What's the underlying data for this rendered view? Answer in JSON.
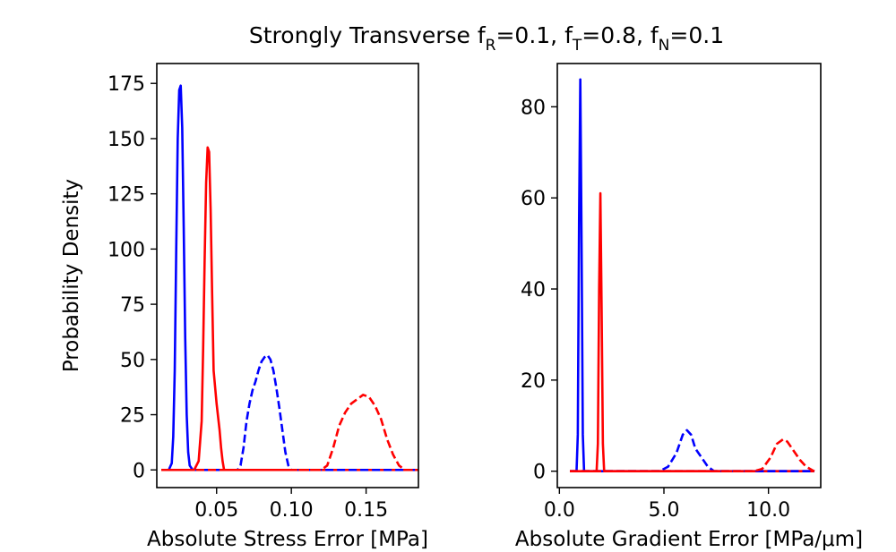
{
  "figure": {
    "title_main": "Strongly Transverse f",
    "title_parts": [
      {
        "base": "Strongly Transverse f",
        "sub": "R",
        "tail": "=0.1, f"
      },
      {
        "sub": "T",
        "tail": "=0.8, f"
      },
      {
        "sub": "N",
        "tail": "=0.1"
      }
    ]
  },
  "colors": {
    "blue": "#0000ff",
    "red": "#ff0000",
    "axis": "#000000"
  },
  "chart_data": [
    {
      "type": "line",
      "xlabel": "Absolute Stress Error [MPa]",
      "ylabel": "Probability Density",
      "xlim": [
        0.01,
        0.185
      ],
      "ylim": [
        -8,
        184
      ],
      "xticks": [
        0.05,
        0.1,
        0.15
      ],
      "xtick_labels": [
        "0.05",
        "0.10",
        "0.15"
      ],
      "yticks": [
        0,
        25,
        50,
        75,
        100,
        125,
        150,
        175
      ],
      "ytick_labels": [
        "0",
        "25",
        "50",
        "75",
        "100",
        "125",
        "150",
        "175"
      ],
      "series": [
        {
          "name": "blue-solid",
          "color": "blue",
          "dash": false,
          "x": [
            0.013,
            0.018,
            0.02,
            0.021,
            0.022,
            0.023,
            0.024,
            0.025,
            0.026,
            0.027,
            0.028,
            0.029,
            0.03,
            0.031,
            0.032,
            0.034,
            0.185
          ],
          "y": [
            0,
            0,
            3,
            15,
            45,
            100,
            150,
            172,
            174,
            155,
            110,
            60,
            25,
            8,
            2,
            0,
            0
          ]
        },
        {
          "name": "red-solid",
          "color": "red",
          "dash": false,
          "x": [
            0.013,
            0.032,
            0.035,
            0.038,
            0.04,
            0.041,
            0.042,
            0.043,
            0.044,
            0.045,
            0.046,
            0.047,
            0.048,
            0.05,
            0.052,
            0.053,
            0.054,
            0.055,
            0.057,
            0.185
          ],
          "y": [
            0,
            0,
            0,
            4,
            22,
            55,
            95,
            130,
            146,
            144,
            118,
            80,
            45,
            30,
            18,
            10,
            4,
            0,
            0,
            0
          ]
        },
        {
          "name": "blue-dashed",
          "color": "blue",
          "dash": true,
          "x": [
            0.013,
            0.062,
            0.064,
            0.066,
            0.068,
            0.07,
            0.072,
            0.074,
            0.076,
            0.078,
            0.08,
            0.082,
            0.084,
            0.086,
            0.088,
            0.09,
            0.092,
            0.094,
            0.096,
            0.098,
            0.1,
            0.102,
            0.185
          ],
          "y": [
            0,
            0,
            0,
            2,
            10,
            22,
            30,
            36,
            40,
            45,
            49,
            51,
            52,
            50,
            45,
            37,
            28,
            18,
            8,
            2,
            0,
            0,
            0
          ]
        },
        {
          "name": "red-dashed",
          "color": "red",
          "dash": true,
          "x": [
            0.013,
            0.115,
            0.12,
            0.124,
            0.128,
            0.132,
            0.136,
            0.14,
            0.144,
            0.148,
            0.152,
            0.156,
            0.16,
            0.164,
            0.168,
            0.172,
            0.176,
            0.18,
            0.185
          ],
          "y": [
            0,
            0,
            0,
            2,
            10,
            20,
            26,
            30,
            32,
            34,
            33,
            29,
            23,
            14,
            7,
            2,
            0,
            0,
            0
          ]
        }
      ]
    },
    {
      "type": "line",
      "xlabel": "Absolute Gradient Error [MPa/μm]",
      "ylabel": "",
      "xlim": [
        -0.1,
        12.5
      ],
      "ylim": [
        -3.6,
        89.5
      ],
      "xticks": [
        0.0,
        5.0,
        10.0
      ],
      "xtick_labels": [
        "0.0",
        "5.0",
        "10.0"
      ],
      "yticks": [
        0,
        20,
        40,
        60,
        80
      ],
      "ytick_labels": [
        "0",
        "20",
        "40",
        "60",
        "80"
      ],
      "series": [
        {
          "name": "blue-solid",
          "color": "blue",
          "dash": false,
          "x": [
            0.5,
            0.82,
            0.88,
            0.94,
            1.0,
            1.06,
            1.12,
            1.18,
            12.2
          ],
          "y": [
            0,
            0,
            8,
            55,
            86,
            50,
            8,
            0,
            0
          ]
        },
        {
          "name": "red-solid",
          "color": "red",
          "dash": false,
          "x": [
            0.5,
            1.78,
            1.84,
            1.9,
            1.96,
            2.02,
            2.08,
            2.14,
            12.2
          ],
          "y": [
            0,
            0,
            6,
            40,
            61,
            35,
            6,
            0,
            0
          ]
        },
        {
          "name": "blue-dashed",
          "color": "blue",
          "dash": true,
          "x": [
            0.5,
            4.8,
            5.2,
            5.6,
            5.9,
            6.1,
            6.3,
            6.5,
            6.8,
            7.1,
            7.4,
            12.2
          ],
          "y": [
            0,
            0,
            1,
            4,
            8,
            9,
            8,
            5,
            3,
            1,
            0,
            0
          ]
        },
        {
          "name": "red-dashed",
          "color": "red",
          "dash": true,
          "x": [
            0.5,
            9.3,
            9.7,
            10.1,
            10.4,
            10.7,
            10.9,
            11.2,
            11.5,
            11.8,
            12.1,
            12.2
          ],
          "y": [
            0,
            0,
            0.5,
            3,
            6,
            7,
            6.5,
            4.5,
            2.5,
            1,
            0.2,
            0
          ]
        }
      ]
    }
  ]
}
